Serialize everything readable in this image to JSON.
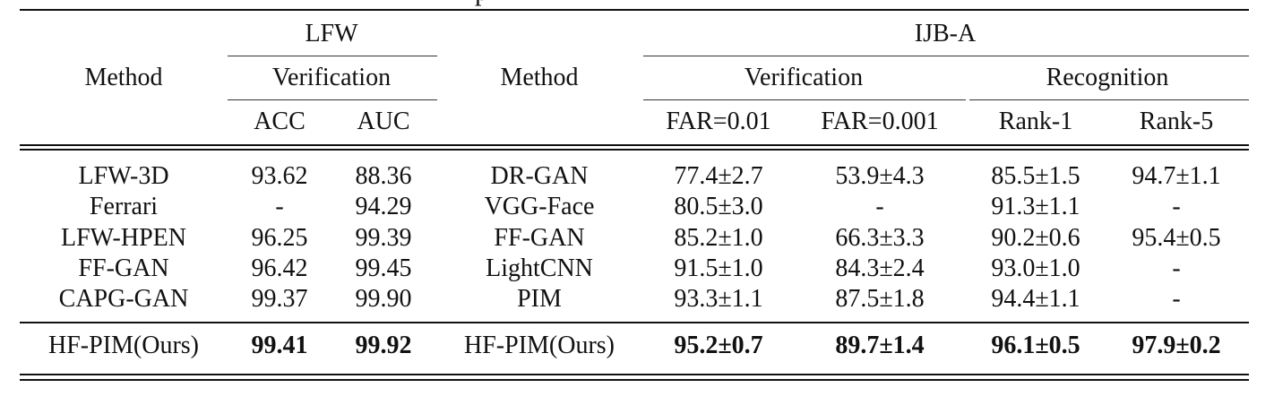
{
  "caption_tail": "p",
  "header": {
    "method_left": "Method",
    "lfw": "LFW",
    "lfw_verification": "Verification",
    "acc": "ACC",
    "auc": "AUC",
    "method_right": "Method",
    "ijba": "IJB-A",
    "ijba_verification": "Verification",
    "ijba_recognition": "Recognition",
    "far001": "FAR=0.01",
    "far0001": "FAR=0.001",
    "rank1": "Rank-1",
    "rank5": "Rank-5"
  },
  "lfw_rows": [
    {
      "method": "LFW-3D",
      "acc": "93.62",
      "auc": "88.36"
    },
    {
      "method": "Ferrari",
      "acc": "-",
      "auc": "94.29"
    },
    {
      "method": "LFW-HPEN",
      "acc": "96.25",
      "auc": "99.39"
    },
    {
      "method": "FF-GAN",
      "acc": "96.42",
      "auc": "99.45"
    },
    {
      "method": "CAPG-GAN",
      "acc": "99.37",
      "auc": "99.90"
    },
    {
      "method": "HF-PIM(Ours)",
      "acc": "99.41",
      "auc": "99.92"
    }
  ],
  "ijba_rows": [
    {
      "method": "DR-GAN",
      "far001": "77.4±2.7",
      "far0001": "53.9±4.3",
      "rank1": "85.5±1.5",
      "rank5": "94.7±1.1"
    },
    {
      "method": "VGG-Face",
      "far001": "80.5±3.0",
      "far0001": "-",
      "rank1": "91.3±1.1",
      "rank5": "-"
    },
    {
      "method": "FF-GAN",
      "far001": "85.2±1.0",
      "far0001": "66.3±3.3",
      "rank1": "90.2±0.6",
      "rank5": "95.4±0.5"
    },
    {
      "method": "LightCNN",
      "far001": "91.5±1.0",
      "far0001": "84.3±2.4",
      "rank1": "93.0±1.0",
      "rank5": "-"
    },
    {
      "method": "PIM",
      "far001": "93.3±1.1",
      "far0001": "87.5±1.8",
      "rank1": "94.4±1.1",
      "rank5": "-"
    },
    {
      "method": "HF-PIM(Ours)",
      "far001": "95.2±0.7",
      "far0001": "89.7±1.4",
      "rank1": "96.1±0.5",
      "rank5": "97.9±0.2"
    }
  ]
}
